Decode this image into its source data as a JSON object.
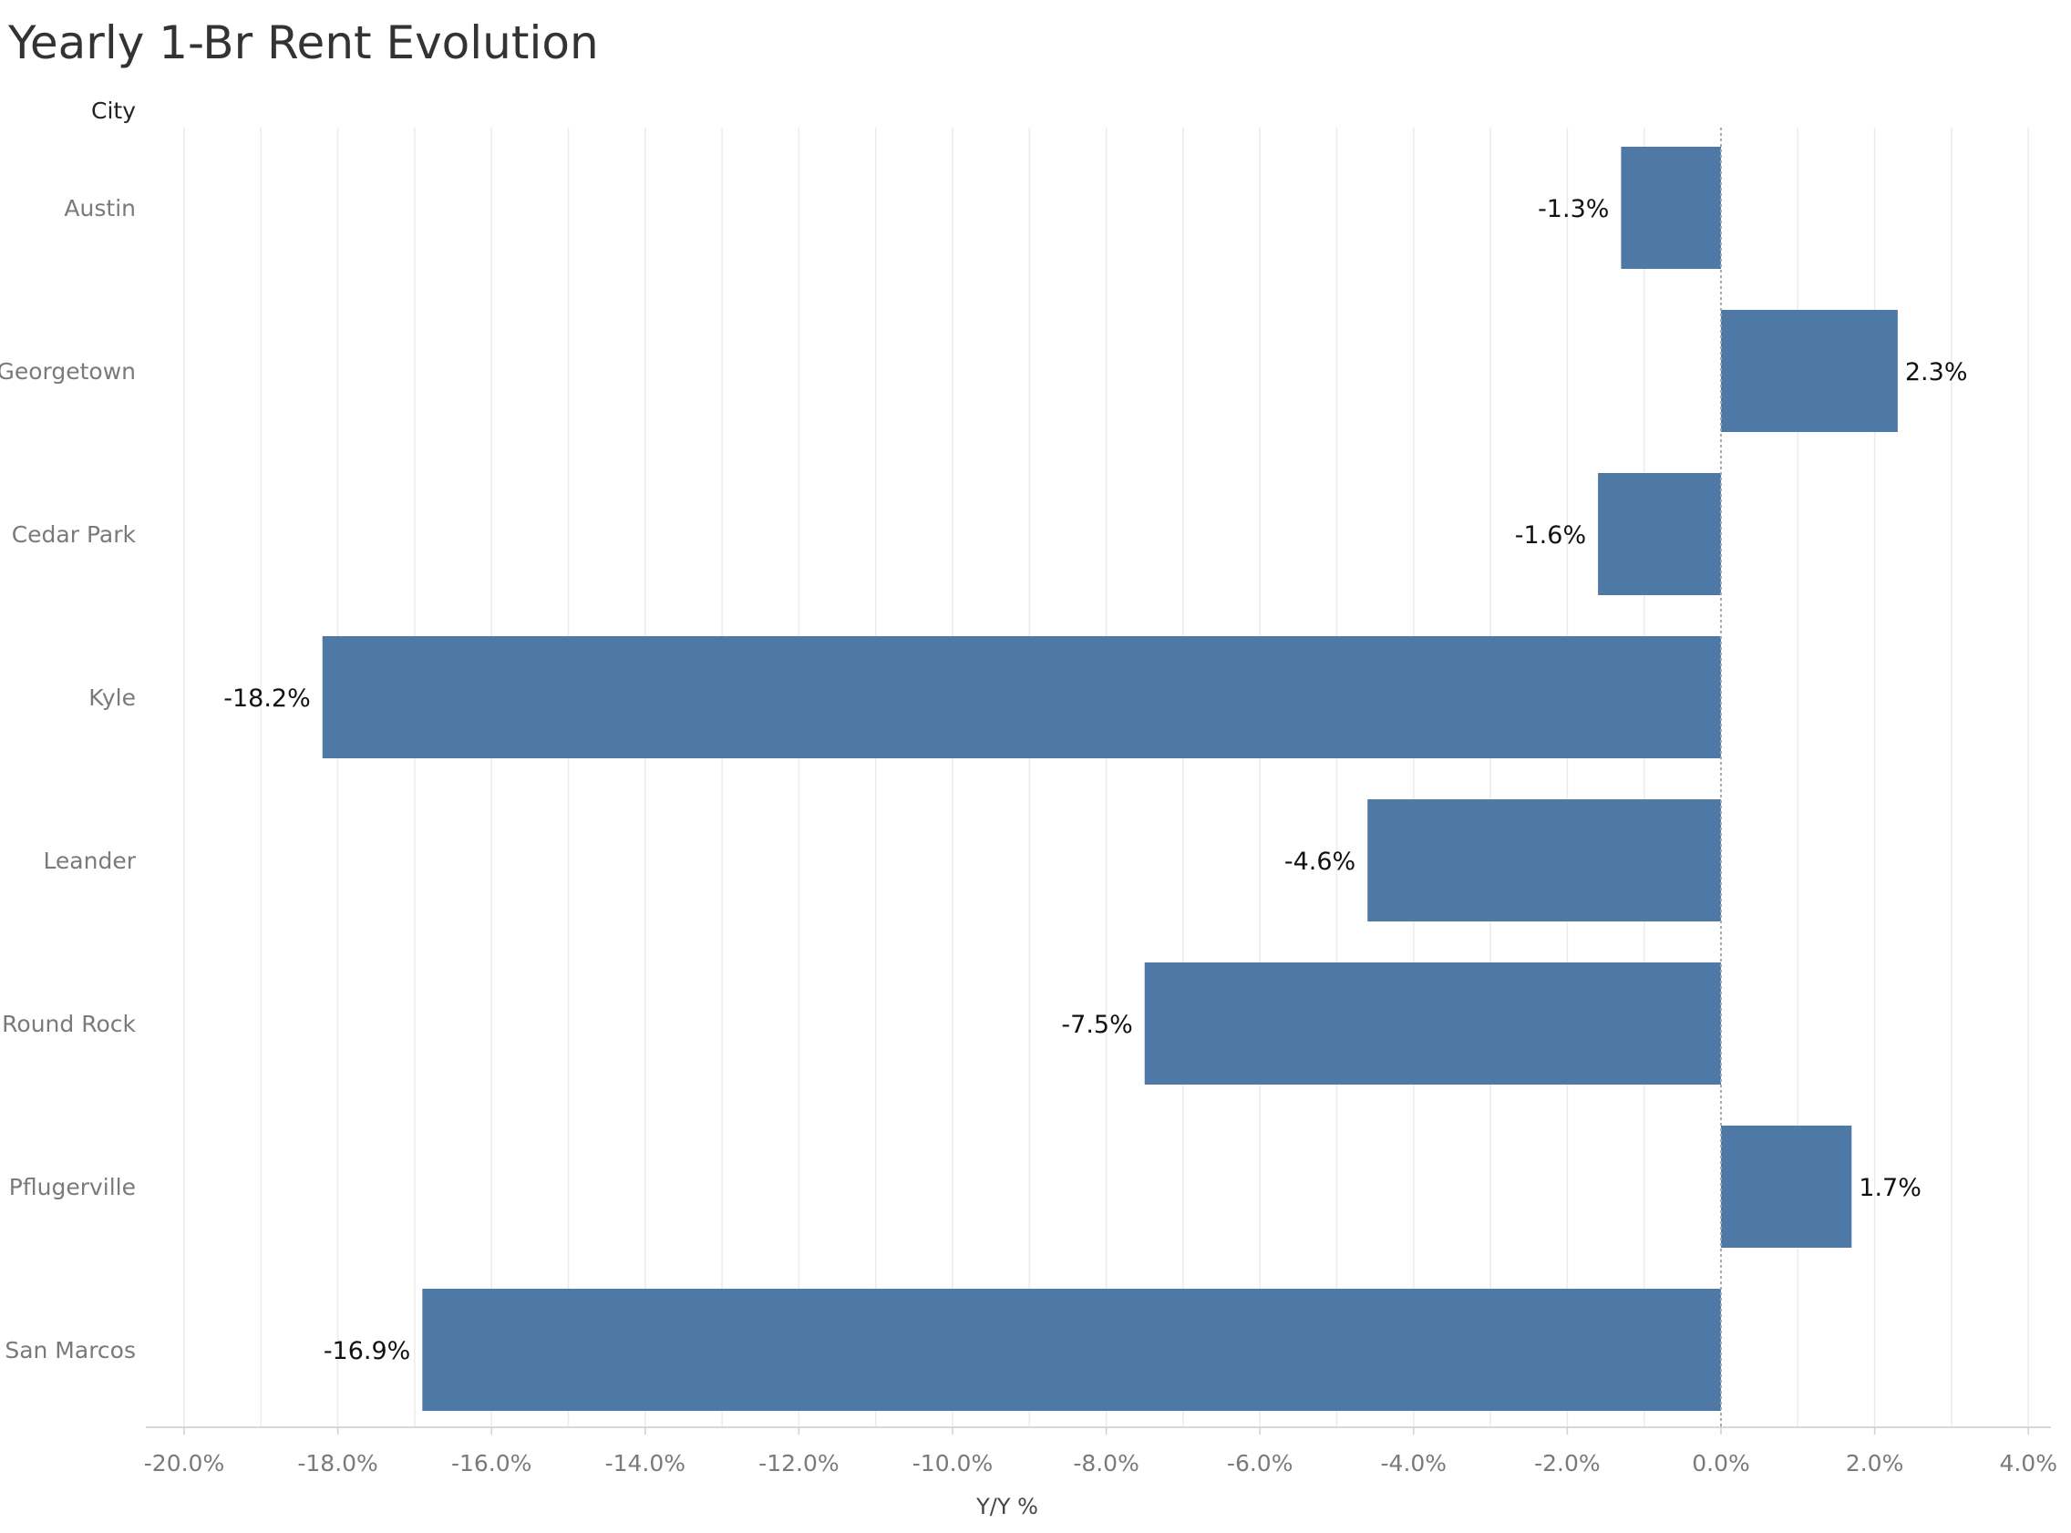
{
  "title": "Yearly 1-Br Rent Evolution",
  "colors": {
    "bar": "#4e79a7",
    "grid": "#ececec",
    "zero_line": "#a8a8a8"
  },
  "chart_data": {
    "type": "bar",
    "orientation": "horizontal",
    "title": "Yearly 1-Br Rent Evolution",
    "row_header": "City",
    "xlabel": "Y/Y %",
    "categories": [
      "Austin",
      "Georgetown",
      "Cedar Park",
      "Kyle",
      "Leander",
      "Round Rock",
      "Pflugerville",
      "San Marcos"
    ],
    "values": [
      -1.3,
      2.3,
      -1.6,
      -18.2,
      -4.6,
      -7.5,
      1.7,
      -16.9
    ],
    "value_labels": [
      "-1.3%",
      "2.3%",
      "-1.6%",
      "-18.2%",
      "-4.6%",
      "-7.5%",
      "1.7%",
      "-16.9%"
    ],
    "xlim": [
      -20.0,
      4.0
    ],
    "ticks": [
      -20,
      -18,
      -16,
      -14,
      -12,
      -10,
      -8,
      -6,
      -4,
      -2,
      0,
      2,
      4
    ],
    "tick_labels": [
      "-20.0%",
      "-18.0%",
      "-16.0%",
      "-14.0%",
      "-12.0%",
      "-10.0%",
      "-8.0%",
      "-6.0%",
      "-4.0%",
      "-2.0%",
      "0.0%",
      "2.0%",
      "4.0%"
    ],
    "grid": true,
    "legend": "none"
  }
}
